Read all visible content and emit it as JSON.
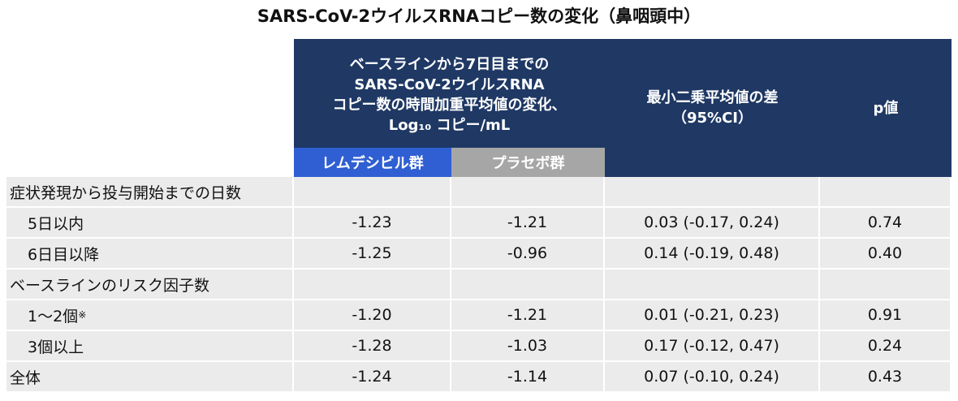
{
  "title": "SARS-CoV-2ウイルスRNAコピー数の変化（鼻咽頭中）",
  "header": {
    "change": [
      "ベースラインから7日目までの",
      "SARS-CoV-2ウイルスRNA",
      "コピー数の時間加重平均値の変化、",
      "Log₁₀ コピー/mL"
    ],
    "remdesivir": "レムデシビル群",
    "placebo": "プラセボ群",
    "diff": [
      "最小二乗平均値の差",
      "（95%CI）"
    ],
    "p": "p値"
  },
  "table": {
    "groups": [
      {
        "label": "症状発現から投与開始までの日数",
        "rows": [
          {
            "label": "5日以内",
            "cells": [
              "-1.23",
              "-1.21",
              "0.03 (-0.17, 0.24)",
              "0.74"
            ]
          },
          {
            "label": "6日目以降",
            "cells": [
              "-1.25",
              "-0.96",
              "0.14 (-0.19, 0.48)",
              "0.40"
            ]
          }
        ]
      },
      {
        "label": "ベースラインのリスク因子数",
        "rows": [
          {
            "label": "1～2個",
            "note": "※",
            "cells": [
              "-1.20",
              "-1.21",
              "0.01 (-0.21, 0.23)",
              "0.91"
            ]
          },
          {
            "label": "3個以上",
            "cells": [
              "-1.28",
              "-1.03",
              "0.17 (-0.12, 0.47)",
              "0.24"
            ]
          }
        ]
      }
    ],
    "total": {
      "label": "全体",
      "cells": [
        "-1.24",
        "-1.14",
        "0.07 (-0.10, 0.24)",
        "0.43"
      ]
    }
  }
}
